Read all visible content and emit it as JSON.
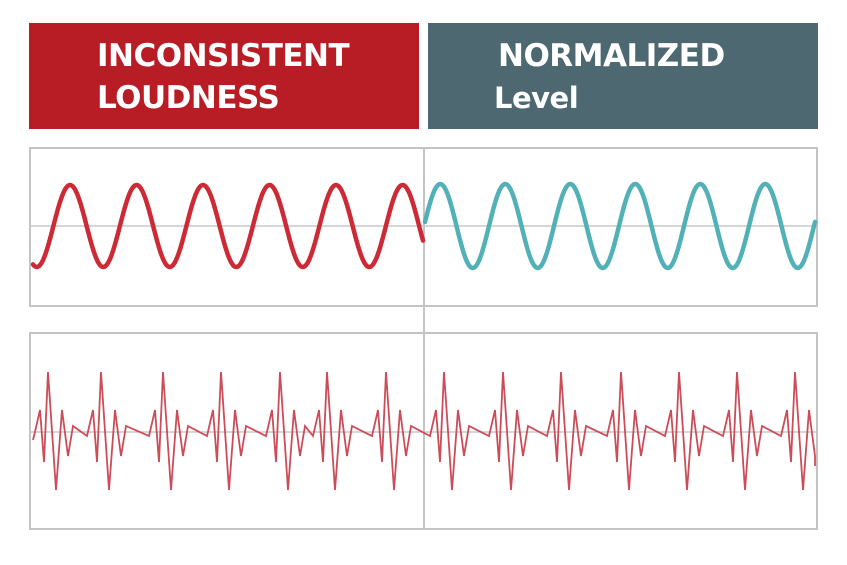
{
  "header_left": {
    "line1": "INCONSISTENT",
    "line2": "LOUDNESS"
  },
  "header_right": {
    "line1": "NORMALIZED",
    "line2": "Level"
  },
  "colors": {
    "header_left_bg": "#b81c24",
    "header_right_bg": "#4d6870",
    "wave_left": "#cc2a35",
    "wave_right": "#52b1b6",
    "wave_bottom": "#cc4d59",
    "baseline": "#c8c8c8",
    "panel_border": "#c4c4c4"
  }
}
